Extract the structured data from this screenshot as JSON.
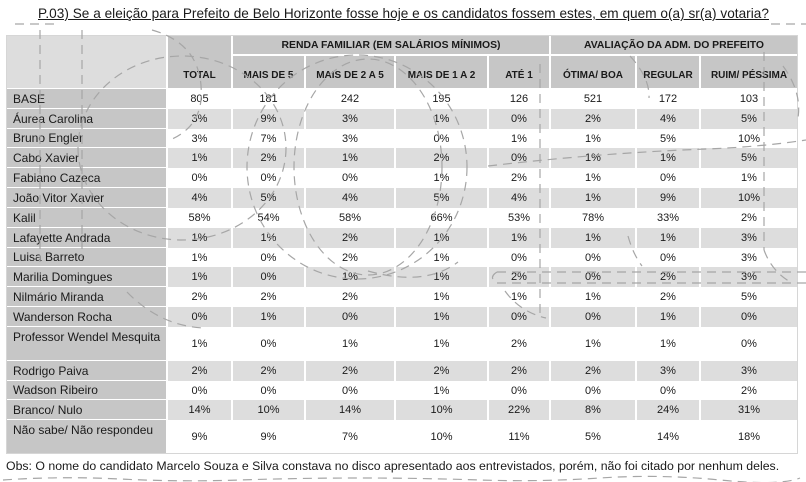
{
  "title": "P.03) Se a eleição para Prefeito de Belo Horizonte fosse hoje e os candidatos fossem estes, em quem o(a) sr(a) votaria?",
  "footnote": "Obs: O nome do candidato Marcelo Souza e Silva constava no disco apresentado aos entrevistados, porém, não foi citado por nenhum deles.",
  "table": {
    "total_header": "TOTAL",
    "groups": [
      {
        "label": "RENDA FAMILIAR (EM SALÁRIOS MÍNIMOS)",
        "columns": [
          "MAIS DE 5",
          "MAIS DE 2 A 5",
          "MAIS DE 1 A 2",
          "ATÉ 1"
        ]
      },
      {
        "label": "AVALIAÇÃO DA ADM. DO PREFEITO",
        "columns": [
          "ÓTIMA/ BOA",
          "REGULAR",
          "RUIM/ PÉSSIMA"
        ]
      }
    ],
    "rows": [
      {
        "label": "BASE",
        "values": [
          "805",
          "181",
          "242",
          "195",
          "126",
          "521",
          "172",
          "103"
        ]
      },
      {
        "label": "Áurea Carolina",
        "values": [
          "3%",
          "9%",
          "3%",
          "1%",
          "0%",
          "2%",
          "4%",
          "5%"
        ]
      },
      {
        "label": "Bruno Engler",
        "values": [
          "3%",
          "7%",
          "3%",
          "0%",
          "1%",
          "1%",
          "5%",
          "10%"
        ]
      },
      {
        "label": "Cabo Xavier",
        "values": [
          "1%",
          "2%",
          "1%",
          "2%",
          "0%",
          "1%",
          "1%",
          "5%"
        ]
      },
      {
        "label": "Fabiano Cazeca",
        "values": [
          "0%",
          "0%",
          "0%",
          "1%",
          "2%",
          "1%",
          "0%",
          "1%"
        ]
      },
      {
        "label": "João Vitor Xavier",
        "values": [
          "4%",
          "5%",
          "4%",
          "5%",
          "4%",
          "1%",
          "9%",
          "10%"
        ]
      },
      {
        "label": "Kalil",
        "values": [
          "58%",
          "54%",
          "58%",
          "66%",
          "53%",
          "78%",
          "33%",
          "2%"
        ]
      },
      {
        "label": "Lafayette Andrada",
        "values": [
          "1%",
          "1%",
          "2%",
          "1%",
          "1%",
          "1%",
          "1%",
          "3%"
        ]
      },
      {
        "label": "Luisa Barreto",
        "values": [
          "1%",
          "0%",
          "2%",
          "1%",
          "0%",
          "0%",
          "0%",
          "3%"
        ]
      },
      {
        "label": "Marilia Domingues",
        "values": [
          "1%",
          "0%",
          "1%",
          "1%",
          "2%",
          "0%",
          "2%",
          "3%"
        ]
      },
      {
        "label": "Nilmário Miranda",
        "values": [
          "2%",
          "2%",
          "2%",
          "1%",
          "1%",
          "1%",
          "2%",
          "5%"
        ]
      },
      {
        "label": "Wanderson Rocha",
        "values": [
          "0%",
          "1%",
          "0%",
          "1%",
          "0%",
          "0%",
          "1%",
          "0%"
        ]
      },
      {
        "label": "Professor Wendel Mesquita",
        "values": [
          "1%",
          "0%",
          "1%",
          "1%",
          "2%",
          "1%",
          "1%",
          "0%"
        ]
      },
      {
        "label": "Rodrigo Paiva",
        "values": [
          "2%",
          "2%",
          "2%",
          "2%",
          "2%",
          "2%",
          "3%",
          "3%"
        ]
      },
      {
        "label": "Wadson Ribeiro",
        "values": [
          "0%",
          "0%",
          "0%",
          "1%",
          "0%",
          "0%",
          "0%",
          "2%"
        ]
      },
      {
        "label": "Branco/ Nulo",
        "values": [
          "14%",
          "10%",
          "14%",
          "10%",
          "22%",
          "8%",
          "24%",
          "31%"
        ]
      },
      {
        "label": "Não sabe/ Não respondeu",
        "values": [
          "9%",
          "9%",
          "7%",
          "10%",
          "11%",
          "5%",
          "14%",
          "18%"
        ]
      }
    ]
  },
  "colors": {
    "header_gray": "#c6c6c6",
    "corner_gray": "#dddddd",
    "stripe_gray": "#dddddd",
    "row_white": "#ffffff",
    "text": "#1a1a1a",
    "watermark": "#a6a6a6"
  }
}
